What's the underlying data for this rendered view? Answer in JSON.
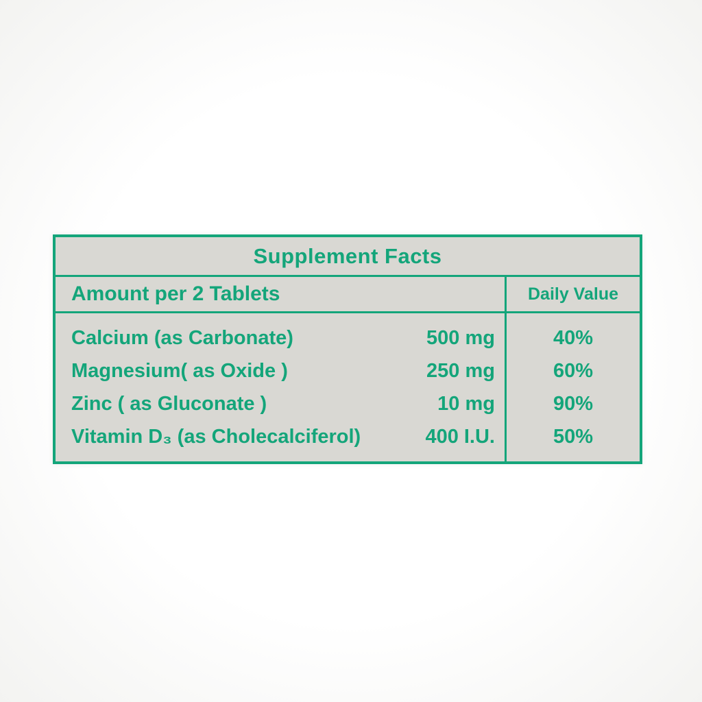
{
  "label": {
    "title": "Supplement Facts",
    "accent_color": "#14a57a",
    "panel_background": "#d9d8d3",
    "columns": {
      "amount_header": "Amount per 2 Tablets",
      "daily_value_header": "Daily Value"
    },
    "rows": [
      {
        "name": "Calcium (as Carbonate)",
        "amount": "500 mg",
        "daily_value": "40%"
      },
      {
        "name": "Magnesium( as Oxide )",
        "amount": "250 mg",
        "daily_value": "60%"
      },
      {
        "name": "Zinc ( as Gluconate )",
        "amount": "10 mg",
        "daily_value": "90%"
      },
      {
        "name": "Vitamin D₃ (as Cholecalciferol)",
        "amount": "400 I.U.",
        "daily_value": "50%"
      }
    ]
  }
}
